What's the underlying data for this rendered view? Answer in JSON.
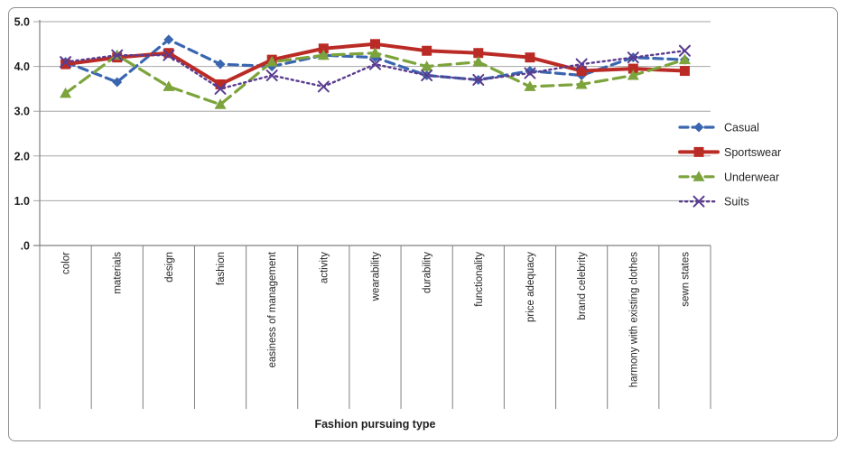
{
  "chart_data": {
    "type": "line",
    "title": "",
    "xlabel": "Fashion pursuing type",
    "ylabel": "",
    "ylim": [
      0,
      5
    ],
    "grid": true,
    "legend_position": "right",
    "yticks": [
      {
        "value": 5,
        "label": "5.0"
      },
      {
        "value": 4,
        "label": "4.0"
      },
      {
        "value": 3,
        "label": "3.0"
      },
      {
        "value": 2,
        "label": "2.0"
      },
      {
        "value": 1,
        "label": "1.0"
      },
      {
        "value": 0,
        "label": ".0"
      }
    ],
    "categories": [
      "color",
      "materials",
      "design",
      "fashion",
      "easiness of management",
      "activity",
      "wearability",
      "durability",
      "functionality",
      "price adequacy",
      "brand celebrity",
      "harmony with existing clothes",
      "sewn states"
    ],
    "series": [
      {
        "name": "Casual",
        "color": "#3A66B0",
        "line": "dashed",
        "marker": "diamond",
        "values": [
          4.1,
          3.65,
          4.6,
          4.05,
          4.0,
          4.25,
          4.2,
          3.8,
          3.7,
          3.9,
          3.8,
          4.2,
          4.15
        ]
      },
      {
        "name": "Sportswear",
        "color": "#BB2B26",
        "line": "solid",
        "marker": "square",
        "values": [
          4.05,
          4.2,
          4.3,
          3.6,
          4.15,
          4.4,
          4.5,
          4.35,
          4.3,
          4.2,
          3.9,
          3.95,
          3.9
        ]
      },
      {
        "name": "Underwear",
        "color": "#7CA33C",
        "line": "dashed",
        "marker": "triangle",
        "values": [
          3.4,
          4.25,
          3.55,
          3.15,
          4.1,
          4.25,
          4.3,
          4.0,
          4.1,
          3.55,
          3.6,
          3.8,
          4.15
        ]
      },
      {
        "name": "Suits",
        "color": "#5A3C8F",
        "line": "dotted",
        "marker": "x",
        "values": [
          4.1,
          4.25,
          4.25,
          3.5,
          3.8,
          3.55,
          4.05,
          3.8,
          3.7,
          3.85,
          4.05,
          4.2,
          4.35
        ]
      }
    ],
    "axis_color": "#808080",
    "grid_color": "#A6A6A6",
    "text_color": "#262626"
  }
}
